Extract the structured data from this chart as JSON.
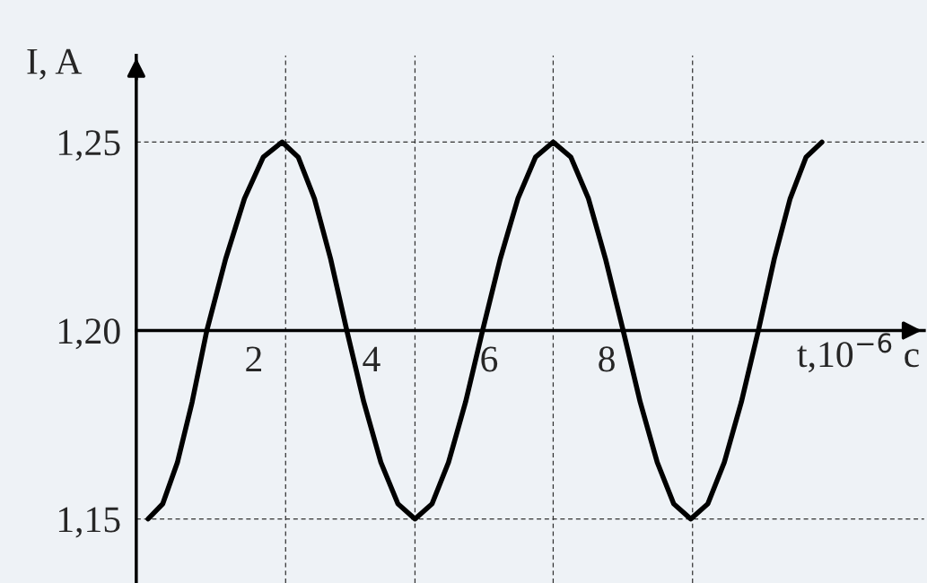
{
  "chart_data": {
    "type": "line",
    "xlabel": "t,10$^{−6}$ c",
    "ylabel": "I, A",
    "color": "#000000",
    "line_style": "solid",
    "grid": false,
    "x": [
      0.2,
      0.45,
      0.7,
      0.95,
      1.2,
      1.52,
      1.84,
      2.16,
      2.48,
      2.755,
      3.03,
      3.305,
      3.58,
      3.87,
      4.16,
      4.45,
      4.74,
      5.03,
      5.31,
      5.6,
      5.89,
      6.19,
      6.49,
      6.79,
      7.09,
      7.39,
      7.69,
      7.98,
      8.28,
      8.57,
      8.86,
      9.14,
      9.43,
      9.72,
      10.0,
      10.29,
      10.58,
      10.85,
      11.12,
      11.39,
      11.66
    ],
    "values": [
      1.15,
      1.154,
      1.165,
      1.181,
      1.2,
      1.219,
      1.235,
      1.246,
      1.25,
      1.246,
      1.235,
      1.219,
      1.2,
      1.181,
      1.165,
      1.154,
      1.15,
      1.154,
      1.165,
      1.181,
      1.2,
      1.219,
      1.235,
      1.246,
      1.25,
      1.246,
      1.235,
      1.219,
      1.2,
      1.181,
      1.165,
      1.154,
      1.15,
      1.154,
      1.165,
      1.181,
      1.2,
      1.219,
      1.235,
      1.246,
      1.25
    ],
    "xlim": [
      0,
      13.4
    ],
    "ylim": [
      1.133,
      1.273
    ],
    "xticks": [
      2,
      4,
      6,
      8
    ],
    "yticks": [
      {
        "value": 1.15,
        "label": "1,15"
      },
      {
        "value": 1.2,
        "label": "1,20"
      },
      {
        "value": 1.25,
        "label": "1,25"
      }
    ],
    "ref_lines": [
      {
        "axis": "y",
        "value": 1.25,
        "line_style": "dashed",
        "color": "#333333"
      },
      {
        "axis": "y",
        "value": 1.15,
        "line_style": "dashed",
        "color": "#333333"
      },
      {
        "axis": "x",
        "value": 2.54,
        "line_style": "dashed",
        "color": "#333333"
      },
      {
        "axis": "x",
        "value": 4.74,
        "line_style": "dashed",
        "color": "#333333"
      },
      {
        "axis": "x",
        "value": 7.09,
        "line_style": "dashed",
        "color": "#333333"
      },
      {
        "axis": "x",
        "value": 9.46,
        "line_style": "dashed",
        "color": "#333333"
      }
    ]
  }
}
